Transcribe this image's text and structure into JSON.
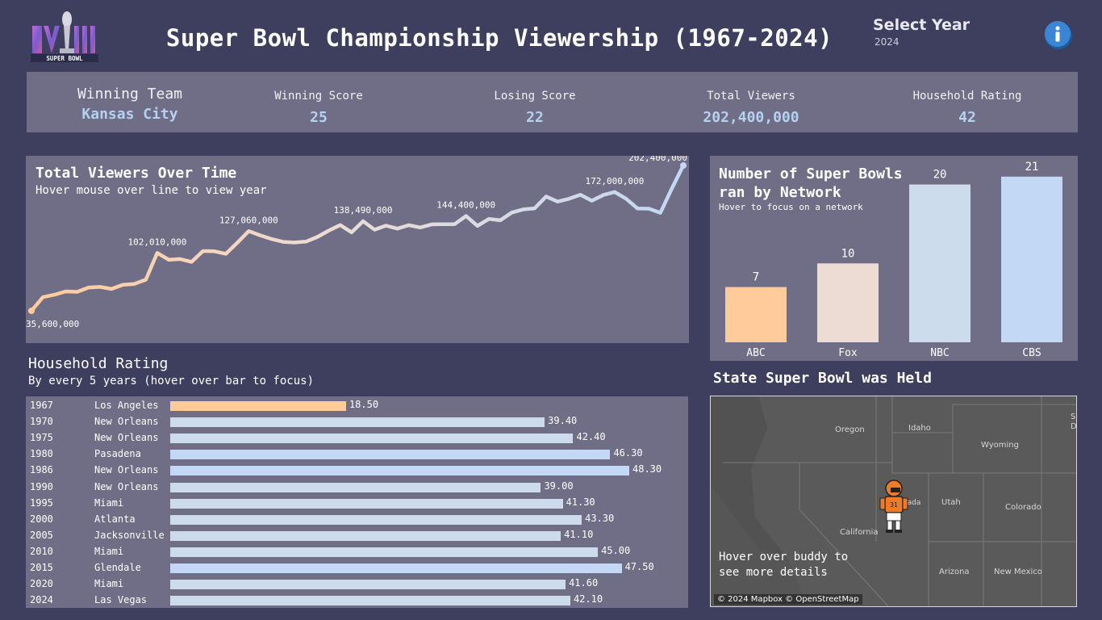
{
  "header": {
    "logo_text": "SUPER BOWL",
    "logo_numeral": "LVIII",
    "title": "Super Bowl Championship Viewership (1967-2024)",
    "select_label": "Select Year",
    "select_value": "2024",
    "info_icon": "info-icon"
  },
  "kpis": [
    {
      "label": "Winning Team",
      "value": "Kansas City"
    },
    {
      "label": "Winning Score",
      "value": "25"
    },
    {
      "label": "Losing Score",
      "value": "22"
    },
    {
      "label": "Total Viewers",
      "value": "202,400,000"
    },
    {
      "label": "Household Rating",
      "value": "42"
    }
  ],
  "colors": {
    "background": "#3e3e5e",
    "panel": "#706e86",
    "accent_value": "#b4d2f0",
    "abc": "#ffcb9a",
    "fox": "#ecdcd4",
    "nbc": "#ccdcec",
    "cbs": "#c2d8f4"
  },
  "chart_data": [
    {
      "type": "line",
      "title": "Total Viewers Over Time",
      "subtitle": "Hover mouse over line to view year",
      "x": [
        1967,
        1968,
        1969,
        1970,
        1971,
        1972,
        1973,
        1974,
        1975,
        1976,
        1977,
        1978,
        1979,
        1980,
        1981,
        1982,
        1983,
        1984,
        1985,
        1986,
        1987,
        1988,
        1989,
        1990,
        1991,
        1992,
        1993,
        1994,
        1995,
        1996,
        1997,
        1998,
        1999,
        2000,
        2001,
        2002,
        2003,
        2004,
        2005,
        2006,
        2007,
        2008,
        2009,
        2010,
        2011,
        2012,
        2013,
        2014,
        2015,
        2016,
        2017,
        2018,
        2019,
        2020,
        2021,
        2022,
        2023,
        2024
      ],
      "y": [
        35600000,
        51300000,
        54000000,
        57800000,
        57400000,
        62400000,
        63000000,
        60700000,
        65500000,
        66500000,
        71400000,
        102010000,
        94300000,
        95000000,
        91800000,
        104200000,
        103900000,
        101000000,
        113800000,
        127060000,
        122200000,
        118000000,
        114700000,
        114000000,
        115000000,
        120400000,
        127700000,
        134000000,
        125700000,
        138490000,
        128700000,
        133400000,
        129900000,
        133900000,
        131200000,
        134800000,
        134900000,
        135000000,
        144400000,
        133100000,
        141100000,
        139500000,
        148400000,
        152000000,
        153200000,
        166800000,
        161000000,
        164100000,
        168800000,
        162000000,
        168500000,
        172000000,
        164200000,
        153000000,
        152800000,
        148100000,
        176000000,
        202400000
      ],
      "labeled_points": [
        {
          "label": "35,600,000",
          "index": 0
        },
        {
          "label": "102,010,000",
          "index": 11
        },
        {
          "label": "127,060,000",
          "index": 19
        },
        {
          "label": "138,490,000",
          "index": 29
        },
        {
          "label": "144,400,000",
          "index": 38
        },
        {
          "label": "172,000,000",
          "index": 51
        },
        {
          "label": "202,400,000",
          "index": 57
        }
      ],
      "grid": false
    },
    {
      "type": "bar",
      "title": "Number of Super Bowls ran by Network",
      "subtitle": "Hover to focus on a network",
      "categories": [
        "ABC",
        "Fox",
        "NBC",
        "CBS"
      ],
      "values": [
        7,
        10,
        20,
        21
      ],
      "bar_colors": [
        "#ffcb9a",
        "#ecdcd4",
        "#ccdcec",
        "#c2d8f4"
      ],
      "ylim": [
        0,
        22
      ]
    },
    {
      "type": "bar",
      "orientation": "horizontal",
      "title": "Household Rating",
      "subtitle": "By every 5 years (hover over bar to focus)",
      "rows": [
        {
          "year": "1967",
          "city": "Los Angeles",
          "value": 18.5,
          "label": "18.50"
        },
        {
          "year": "1970",
          "city": "New Orleans",
          "value": 39.4,
          "label": "39.40"
        },
        {
          "year": "1975",
          "city": "New Orleans",
          "value": 42.4,
          "label": "42.40"
        },
        {
          "year": "1980",
          "city": "Pasadena",
          "value": 46.3,
          "label": "46.30"
        },
        {
          "year": "1986",
          "city": "New Orleans",
          "value": 48.3,
          "label": "48.30"
        },
        {
          "year": "1990",
          "city": "New Orleans",
          "value": 39.0,
          "label": "39.00"
        },
        {
          "year": "1995",
          "city": "Miami",
          "value": 41.3,
          "label": "41.30"
        },
        {
          "year": "2000",
          "city": "Atlanta",
          "value": 43.3,
          "label": "43.30"
        },
        {
          "year": "2005",
          "city": "Jacksonville",
          "value": 41.1,
          "label": "41.10"
        },
        {
          "year": "2010",
          "city": "Miami",
          "value": 45.0,
          "label": "45.00"
        },
        {
          "year": "2015",
          "city": "Glendale",
          "value": 47.5,
          "label": "47.50"
        },
        {
          "year": "2020",
          "city": "Miami",
          "value": 41.6,
          "label": "41.60"
        },
        {
          "year": "2024",
          "city": "Las Vegas",
          "value": 42.1,
          "label": "42.10"
        }
      ],
      "xlim": [
        0,
        48.3
      ]
    }
  ],
  "map": {
    "title": "State Super Bowl was Held",
    "labels": [
      "Oregon",
      "Idaho",
      "Wyoming",
      "Utah",
      "Colorado",
      "California",
      "Arizona",
      "New Mexico",
      "Nevada",
      "S",
      "D"
    ],
    "hint_line1": "Hover over buddy to",
    "hint_line2": "see more details",
    "credit": "© 2024 Mapbox © OpenStreetMap",
    "marker_icon": "football-player-icon",
    "marker_state": "Nevada"
  }
}
